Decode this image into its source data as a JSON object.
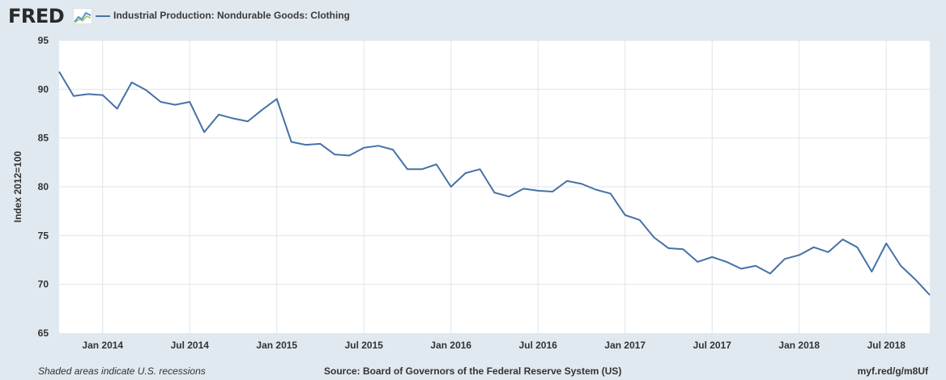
{
  "header": {
    "logo_text": "FRED",
    "legend_label": "Industrial Production: Nondurable Goods: Clothing"
  },
  "footer": {
    "left": "Shaded areas indicate U.S. recessions",
    "center": "Source: Board of Governors of the Federal Reserve System (US)",
    "right": "myf.red/g/m8Uf"
  },
  "colors": {
    "series": "#4572a7",
    "background": "#e1e9f0",
    "plot": "#ffffff",
    "grid": "#e1e5ea"
  },
  "chart_data": {
    "type": "line",
    "title": "",
    "xlabel": "",
    "ylabel": "Index 2012=100",
    "ylim": [
      65,
      95
    ],
    "yticks": [
      65,
      70,
      75,
      80,
      85,
      90,
      95
    ],
    "xlim": [
      "2013-10",
      "2018-10"
    ],
    "xticks": [
      {
        "label": "Jan 2014",
        "date": "2014-01"
      },
      {
        "label": "Jul 2014",
        "date": "2014-07"
      },
      {
        "label": "Jan 2015",
        "date": "2015-01"
      },
      {
        "label": "Jul 2015",
        "date": "2015-07"
      },
      {
        "label": "Jan 2016",
        "date": "2016-01"
      },
      {
        "label": "Jul 2016",
        "date": "2016-07"
      },
      {
        "label": "Jan 2017",
        "date": "2017-01"
      },
      {
        "label": "Jul 2017",
        "date": "2017-07"
      },
      {
        "label": "Jan 2018",
        "date": "2018-01"
      },
      {
        "label": "Jul 2018",
        "date": "2018-07"
      }
    ],
    "grid": true,
    "legend": "top-left",
    "series": [
      {
        "name": "Industrial Production: Nondurable Goods: Clothing",
        "x": [
          "2013-10",
          "2013-11",
          "2013-12",
          "2014-01",
          "2014-02",
          "2014-03",
          "2014-04",
          "2014-05",
          "2014-06",
          "2014-07",
          "2014-08",
          "2014-09",
          "2014-10",
          "2014-11",
          "2014-12",
          "2015-01",
          "2015-02",
          "2015-03",
          "2015-04",
          "2015-05",
          "2015-06",
          "2015-07",
          "2015-08",
          "2015-09",
          "2015-10",
          "2015-11",
          "2015-12",
          "2016-01",
          "2016-02",
          "2016-03",
          "2016-04",
          "2016-05",
          "2016-06",
          "2016-07",
          "2016-08",
          "2016-09",
          "2016-10",
          "2016-11",
          "2016-12",
          "2017-01",
          "2017-02",
          "2017-03",
          "2017-04",
          "2017-05",
          "2017-06",
          "2017-07",
          "2017-08",
          "2017-09",
          "2017-10",
          "2017-11",
          "2017-12",
          "2018-01",
          "2018-02",
          "2018-03",
          "2018-04",
          "2018-05",
          "2018-06",
          "2018-07",
          "2018-08",
          "2018-09",
          "2018-10"
        ],
        "values": [
          91.8,
          89.3,
          89.5,
          89.4,
          88.0,
          90.7,
          89.9,
          88.7,
          88.4,
          88.7,
          85.6,
          87.4,
          87.0,
          86.7,
          87.9,
          89.0,
          84.6,
          84.3,
          84.4,
          83.3,
          83.2,
          84.0,
          84.2,
          83.8,
          81.8,
          81.8,
          82.3,
          80.0,
          81.4,
          81.8,
          79.4,
          79.0,
          79.8,
          79.6,
          79.5,
          80.6,
          80.3,
          79.7,
          79.3,
          77.1,
          76.6,
          74.8,
          73.7,
          73.6,
          72.3,
          72.8,
          72.3,
          71.6,
          71.9,
          71.1,
          72.6,
          73.0,
          73.8,
          73.3,
          74.6,
          73.8,
          71.3,
          74.2,
          71.9,
          70.5,
          68.9
        ]
      }
    ]
  }
}
